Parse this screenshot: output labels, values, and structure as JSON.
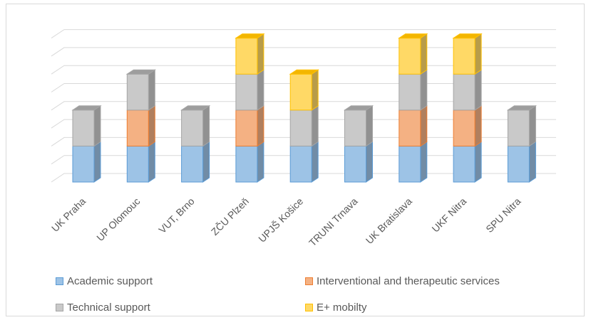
{
  "chart_data": {
    "type": "bar",
    "stacked": true,
    "three_d": true,
    "title": "",
    "xlabel": "",
    "ylabel": "",
    "ylim": [
      0,
      8
    ],
    "grid": true,
    "legend_position": "bottom",
    "categories": [
      "UK Praha",
      "UP Olomouc",
      "VUT, Brno",
      "ZČU Plzeň",
      "UPJŠ Košice",
      "TRUNI Trnava",
      "UK Bratislava",
      "UKF Nitra",
      "SPU Nitra"
    ],
    "series": [
      {
        "name": "Academic support",
        "values": [
          2,
          2,
          2,
          2,
          2,
          2,
          2,
          2,
          2
        ],
        "color": "#9dc3e6",
        "stroke": "#5b9bd5"
      },
      {
        "name": "Interventional and therapeutic services",
        "values": [
          0,
          2,
          0,
          2,
          0,
          0,
          2,
          2,
          0
        ],
        "color": "#f4b183",
        "stroke": "#ed7d31"
      },
      {
        "name": "Technical support",
        "values": [
          2,
          2,
          2,
          2,
          2,
          2,
          2,
          2,
          2
        ],
        "color": "#c9c9c9",
        "stroke": "#a5a5a5"
      },
      {
        "name": "E+ mobilty",
        "values": [
          0,
          0,
          0,
          2,
          2,
          0,
          2,
          2,
          0
        ],
        "color": "#ffd966",
        "stroke": "#ffc000"
      }
    ]
  }
}
